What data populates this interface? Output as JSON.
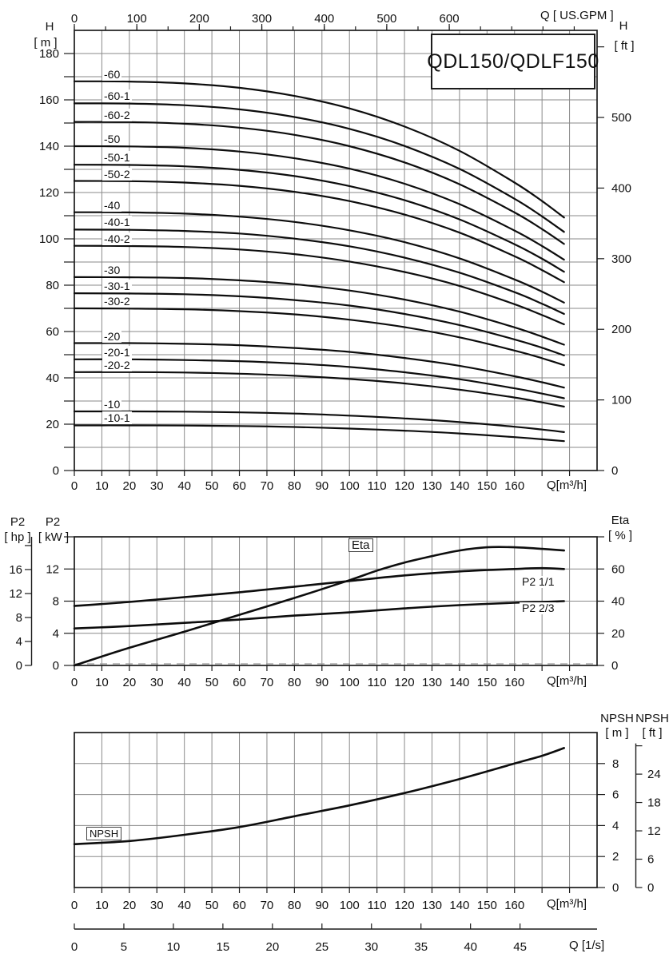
{
  "title": "QDL150/QDLF150",
  "colors": {
    "background": "#ffffff",
    "grid": "#8a8a8a",
    "frame": "#1c1c1c",
    "curve": "#0d0d0d",
    "text": "#111111"
  },
  "labels": {
    "h": "H",
    "m_unit": "[ m ]",
    "ft_unit": "[ ft ]",
    "gpm": "Q [ US.GPM ]",
    "qm3h": "Q[m³/h]",
    "p2": "P2",
    "hp_unit": "[ hp ]",
    "kw_unit": "[ kW ]",
    "eta": "Eta",
    "pct_unit": "[ % ]",
    "npsh": "NPSH",
    "ls": "Q [1/s]"
  },
  "chart_data": [
    {
      "type": "line",
      "name": "head-capacity-curves",
      "title": "QDL150/QDLF150",
      "xlabel": "Q[m³/h]",
      "ylabel": "H [m]",
      "x_domain": [
        0,
        190
      ],
      "x_grid_step": 10,
      "x_label_max": 160,
      "y_domain": [
        0,
        190
      ],
      "y_grid_step": 10,
      "y_label_step": 20,
      "y_label_max": 180,
      "x_top_axis": {
        "label": "Q [ US.GPM ]",
        "gpm_per_m3h": 4.4029,
        "label_ticks": [
          0,
          100,
          200,
          300,
          400,
          500,
          600
        ],
        "minor_step": 50,
        "minor_max": 800
      },
      "y_right_axis": {
        "label": "H [ft]",
        "ft_per_m": 3.2808,
        "label_ticks": [
          0,
          100,
          200,
          300,
          400,
          500
        ],
        "tick_max": 600
      },
      "x": [
        0,
        20,
        40,
        60,
        80,
        100,
        120,
        140,
        160,
        170,
        178
      ],
      "series": [
        {
          "label": "-60",
          "values": [
            168,
            167.9,
            167.1,
            165.2,
            161.7,
            156.3,
            148.5,
            138.0,
            124.3,
            116.3,
            109.2
          ]
        },
        {
          "label": "-60-1",
          "values": [
            158.5,
            158.4,
            157.7,
            155.9,
            152.6,
            147.5,
            140.1,
            130.2,
            117.3,
            109.7,
            103.0
          ]
        },
        {
          "label": "-60-2",
          "values": [
            150.5,
            150.4,
            149.7,
            148.0,
            144.9,
            140.0,
            133.0,
            123.6,
            111.4,
            104.2,
            97.8
          ]
        },
        {
          "label": "-50",
          "values": [
            140,
            139.9,
            139.3,
            137.7,
            134.8,
            130.3,
            123.8,
            115.0,
            103.6,
            96.9,
            91.0
          ]
        },
        {
          "label": "-50-1",
          "values": [
            132,
            131.9,
            131.3,
            129.8,
            127.1,
            122.8,
            116.7,
            108.4,
            97.7,
            91.4,
            85.8
          ]
        },
        {
          "label": "-50-2",
          "values": [
            125,
            124.9,
            124.3,
            122.9,
            120.3,
            116.3,
            110.5,
            102.7,
            92.5,
            86.5,
            81.3
          ]
        },
        {
          "label": "-40",
          "values": [
            111.5,
            111.4,
            110.9,
            109.6,
            107.3,
            103.7,
            98.6,
            91.6,
            82.5,
            77.2,
            72.5
          ]
        },
        {
          "label": "-40-1",
          "values": [
            104,
            103.9,
            103.4,
            102.3,
            100.1,
            96.8,
            91.9,
            85.4,
            77.0,
            72.0,
            67.6
          ]
        },
        {
          "label": "-40-2",
          "values": [
            97,
            96.9,
            96.5,
            95.4,
            93.4,
            90.2,
            85.7,
            79.7,
            71.8,
            67.1,
            63.1
          ]
        },
        {
          "label": "-30",
          "values": [
            83.5,
            83.4,
            83.1,
            82.1,
            80.4,
            77.7,
            73.8,
            68.6,
            61.8,
            57.8,
            54.3
          ]
        },
        {
          "label": "-30-1",
          "values": [
            76.5,
            76.4,
            76.1,
            75.2,
            73.6,
            71.2,
            67.6,
            62.8,
            56.6,
            53.0,
            49.7
          ]
        },
        {
          "label": "-30-2",
          "values": [
            70,
            69.9,
            69.6,
            68.8,
            67.4,
            65.1,
            61.9,
            57.5,
            51.8,
            48.5,
            45.5
          ]
        },
        {
          "label": "-20",
          "values": [
            55,
            55,
            54.7,
            54.1,
            52.9,
            51.2,
            48.6,
            45.2,
            40.7,
            38.1,
            35.8
          ]
        },
        {
          "label": "-20-1",
          "values": [
            48,
            48,
            47.7,
            47.2,
            46.2,
            44.7,
            42.4,
            39.4,
            35.5,
            33.2,
            31.2
          ]
        },
        {
          "label": "-20-2",
          "values": [
            42.5,
            42.5,
            42.3,
            41.8,
            40.9,
            39.5,
            37.6,
            34.9,
            31.5,
            29.4,
            27.6
          ]
        },
        {
          "label": "-10",
          "values": [
            25.5,
            25.5,
            25.4,
            25.1,
            24.6,
            23.7,
            22.5,
            20.9,
            18.9,
            17.7,
            16.6
          ]
        },
        {
          "label": "-10-1",
          "values": [
            19.5,
            19.5,
            19.4,
            19.2,
            18.8,
            18.1,
            17.2,
            16.0,
            14.4,
            13.5,
            12.7
          ]
        }
      ]
    },
    {
      "type": "line",
      "name": "power-efficiency",
      "xlabel": "Q[m³/h]",
      "x_domain": [
        0,
        190
      ],
      "x_grid_step": 10,
      "x_label_max": 160,
      "y_left_kw": {
        "label": "P2 [kW]",
        "domain": [
          0,
          16
        ],
        "ticks": [
          0,
          4,
          8,
          12,
          16
        ],
        "labels": [
          0,
          4,
          8,
          12
        ],
        "grid": [
          4,
          8,
          12
        ]
      },
      "y_left_hp": {
        "label": "P2 [hp]",
        "kw_per_hp": 0.7457,
        "ticks": [
          0,
          4,
          8,
          12,
          16,
          20
        ],
        "labels": [
          0,
          4,
          8,
          12,
          16
        ]
      },
      "y_right_eta": {
        "label": "Eta [%]",
        "domain": [
          0,
          80
        ],
        "ticks": [
          0,
          20,
          40,
          60,
          80
        ],
        "labels": [
          0,
          20,
          40,
          60
        ]
      },
      "series": [
        {
          "name": "Eta",
          "axis": "eta",
          "x": [
            0,
            20,
            40,
            60,
            80,
            100,
            110,
            120,
            130,
            140,
            150,
            160,
            170,
            178
          ],
          "values": [
            0,
            11,
            21,
            31.5,
            42,
            53,
            59,
            64,
            68,
            71.5,
            73.5,
            73.5,
            72.5,
            71.5
          ]
        },
        {
          "name": "P2 1/1",
          "axis": "kw",
          "x": [
            0,
            20,
            40,
            60,
            80,
            100,
            120,
            140,
            160,
            170,
            178
          ],
          "values": [
            7.4,
            7.9,
            8.5,
            9.1,
            9.8,
            10.5,
            11.2,
            11.7,
            12.0,
            12.1,
            12.0
          ]
        },
        {
          "name": "P2 2/3",
          "axis": "kw",
          "x": [
            0,
            20,
            40,
            60,
            80,
            100,
            120,
            140,
            160,
            170,
            178
          ],
          "values": [
            4.6,
            4.9,
            5.3,
            5.7,
            6.2,
            6.6,
            7.1,
            7.5,
            7.8,
            7.9,
            8.0
          ]
        }
      ]
    },
    {
      "type": "line",
      "name": "npsh",
      "xlabel": "Q[m³/h]",
      "x_domain": [
        0,
        190
      ],
      "x_grid_step": 10,
      "x_label_max": 160,
      "y_m": {
        "label": "NPSH [m]",
        "domain": [
          0,
          10
        ],
        "grid_step": 2,
        "ticks": [
          0,
          2,
          4,
          6,
          8
        ]
      },
      "y_ft": {
        "label": "NPSH [ft]",
        "ft_per_m": 3.2808,
        "ticks": [
          0,
          6,
          12,
          18,
          24,
          30
        ],
        "labels": [
          0,
          6,
          12,
          18,
          24
        ]
      },
      "series": [
        {
          "name": "NPSH",
          "x": [
            0,
            20,
            40,
            60,
            80,
            100,
            120,
            140,
            160,
            170,
            178
          ],
          "values": [
            2.8,
            3.0,
            3.4,
            3.9,
            4.6,
            5.3,
            6.1,
            7.0,
            8.0,
            8.5,
            9.0
          ]
        }
      ]
    }
  ],
  "ls_axis": {
    "label": "Q [1/s]",
    "m3h_per_ls": 3.6,
    "ticks": [
      0,
      5,
      10,
      15,
      20,
      25,
      30,
      35,
      40,
      45
    ]
  }
}
